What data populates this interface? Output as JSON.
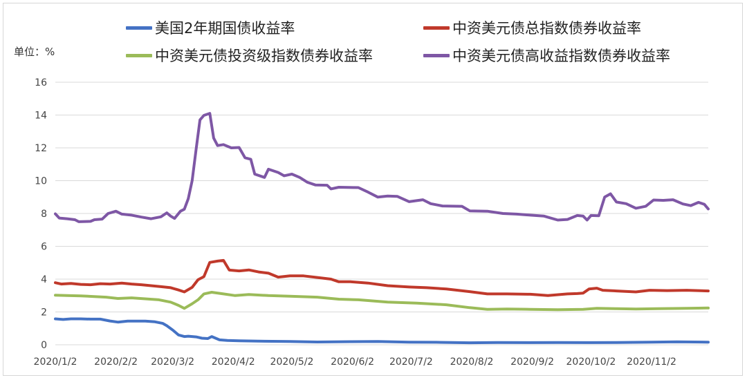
{
  "chart_data": {
    "type": "line",
    "title": "",
    "unit_label": "单位：%",
    "ylim": [
      0,
      16
    ],
    "y_ticks": [
      "0",
      "2",
      "4",
      "6",
      "8",
      "10",
      "12",
      "14",
      "16"
    ],
    "x_ticks": [
      "2020/1/2",
      "2020/2/2",
      "2020/3/2",
      "2020/4/2",
      "2020/5/2",
      "2020/6/2",
      "2020/7/2",
      "2020/8/2",
      "2020/9/2",
      "2020/10/2",
      "2020/11/2"
    ],
    "x_range": [
      "2020/1/2",
      "2020/12/1"
    ],
    "grid": true,
    "legend_position": "top",
    "series": [
      {
        "name": "美国2年期国债收益率",
        "color": "#4472C4",
        "points": [
          [
            "2020/1/2",
            1.58
          ],
          [
            "2020/1/6",
            1.54
          ],
          [
            "2020/1/10",
            1.58
          ],
          [
            "2020/1/15",
            1.58
          ],
          [
            "2020/1/20",
            1.56
          ],
          [
            "2020/1/25",
            1.56
          ],
          [
            "2020/1/30",
            1.45
          ],
          [
            "2020/2/3",
            1.38
          ],
          [
            "2020/2/8",
            1.44
          ],
          [
            "2020/2/12",
            1.44
          ],
          [
            "2020/2/17",
            1.44
          ],
          [
            "2020/2/22",
            1.4
          ],
          [
            "2020/2/26",
            1.3
          ],
          [
            "2020/2/28",
            1.16
          ],
          [
            "2020/3/2",
            0.9
          ],
          [
            "2020/3/5",
            0.6
          ],
          [
            "2020/3/8",
            0.5
          ],
          [
            "2020/3/10",
            0.52
          ],
          [
            "2020/3/14",
            0.48
          ],
          [
            "2020/3/17",
            0.4
          ],
          [
            "2020/3/20",
            0.38
          ],
          [
            "2020/3/22",
            0.5
          ],
          [
            "2020/3/26",
            0.3
          ],
          [
            "2020/3/30",
            0.26
          ],
          [
            "2020/4/5",
            0.24
          ],
          [
            "2020/4/15",
            0.22
          ],
          [
            "2020/5/1",
            0.2
          ],
          [
            "2020/5/15",
            0.17
          ],
          [
            "2020/6/1",
            0.19
          ],
          [
            "2020/6/15",
            0.2
          ],
          [
            "2020/7/1",
            0.16
          ],
          [
            "2020/7/15",
            0.15
          ],
          [
            "2020/8/1",
            0.12
          ],
          [
            "2020/8/15",
            0.14
          ],
          [
            "2020/9/1",
            0.13
          ],
          [
            "2020/9/15",
            0.14
          ],
          [
            "2020/10/1",
            0.13
          ],
          [
            "2020/10/15",
            0.14
          ],
          [
            "2020/11/1",
            0.16
          ],
          [
            "2020/11/15",
            0.18
          ],
          [
            "2020/12/1",
            0.16
          ]
        ]
      },
      {
        "name": "中资美元债总指数债券收益率",
        "color": "#C0392B",
        "points": [
          [
            "2020/1/2",
            3.78
          ],
          [
            "2020/1/5",
            3.7
          ],
          [
            "2020/1/10",
            3.74
          ],
          [
            "2020/1/15",
            3.68
          ],
          [
            "2020/1/20",
            3.66
          ],
          [
            "2020/1/25",
            3.72
          ],
          [
            "2020/1/30",
            3.7
          ],
          [
            "2020/2/5",
            3.76
          ],
          [
            "2020/2/10",
            3.7
          ],
          [
            "2020/2/15",
            3.66
          ],
          [
            "2020/2/20",
            3.6
          ],
          [
            "2020/2/25",
            3.54
          ],
          [
            "2020/3/1",
            3.48
          ],
          [
            "2020/3/5",
            3.34
          ],
          [
            "2020/3/8",
            3.22
          ],
          [
            "2020/3/12",
            3.5
          ],
          [
            "2020/3/15",
            3.96
          ],
          [
            "2020/3/18",
            4.15
          ],
          [
            "2020/3/21",
            5.02
          ],
          [
            "2020/3/25",
            5.1
          ],
          [
            "2020/3/28",
            5.14
          ],
          [
            "2020/3/31",
            4.55
          ],
          [
            "2020/4/5",
            4.5
          ],
          [
            "2020/4/10",
            4.56
          ],
          [
            "2020/4/15",
            4.44
          ],
          [
            "2020/4/20",
            4.36
          ],
          [
            "2020/4/25",
            4.12
          ],
          [
            "2020/5/1",
            4.2
          ],
          [
            "2020/5/8",
            4.2
          ],
          [
            "2020/5/15",
            4.1
          ],
          [
            "2020/5/22",
            4.0
          ],
          [
            "2020/5/26",
            3.84
          ],
          [
            "2020/6/1",
            3.84
          ],
          [
            "2020/6/10",
            3.76
          ],
          [
            "2020/6/20",
            3.6
          ],
          [
            "2020/7/1",
            3.52
          ],
          [
            "2020/7/10",
            3.48
          ],
          [
            "2020/7/20",
            3.4
          ],
          [
            "2020/8/1",
            3.24
          ],
          [
            "2020/8/10",
            3.1
          ],
          [
            "2020/8/20",
            3.1
          ],
          [
            "2020/9/1",
            3.08
          ],
          [
            "2020/9/10",
            3.0
          ],
          [
            "2020/9/20",
            3.1
          ],
          [
            "2020/9/25",
            3.12
          ],
          [
            "2020/9/28",
            3.15
          ],
          [
            "2020/10/1",
            3.4
          ],
          [
            "2020/10/5",
            3.45
          ],
          [
            "2020/10/8",
            3.32
          ],
          [
            "2020/10/15",
            3.28
          ],
          [
            "2020/10/25",
            3.22
          ],
          [
            "2020/11/1",
            3.32
          ],
          [
            "2020/11/10",
            3.3
          ],
          [
            "2020/11/20",
            3.32
          ],
          [
            "2020/12/1",
            3.28
          ]
        ]
      },
      {
        "name": "中资美元债投资级指数债券收益率",
        "color": "#9BBB59",
        "points": [
          [
            "2020/1/2",
            3.02
          ],
          [
            "2020/1/8",
            3.0
          ],
          [
            "2020/1/15",
            2.98
          ],
          [
            "2020/1/22",
            2.94
          ],
          [
            "2020/1/28",
            2.9
          ],
          [
            "2020/2/3",
            2.82
          ],
          [
            "2020/2/10",
            2.86
          ],
          [
            "2020/2/17",
            2.8
          ],
          [
            "2020/2/24",
            2.74
          ],
          [
            "2020/3/1",
            2.6
          ],
          [
            "2020/3/5",
            2.4
          ],
          [
            "2020/3/8",
            2.22
          ],
          [
            "2020/3/12",
            2.5
          ],
          [
            "2020/3/15",
            2.74
          ],
          [
            "2020/3/18",
            3.1
          ],
          [
            "2020/3/22",
            3.2
          ],
          [
            "2020/3/28",
            3.1
          ],
          [
            "2020/4/3",
            3.0
          ],
          [
            "2020/4/10",
            3.06
          ],
          [
            "2020/4/20",
            3.0
          ],
          [
            "2020/5/1",
            2.96
          ],
          [
            "2020/5/15",
            2.9
          ],
          [
            "2020/5/26",
            2.78
          ],
          [
            "2020/6/5",
            2.74
          ],
          [
            "2020/6/20",
            2.6
          ],
          [
            "2020/7/5",
            2.54
          ],
          [
            "2020/7/20",
            2.44
          ],
          [
            "2020/8/1",
            2.26
          ],
          [
            "2020/8/10",
            2.16
          ],
          [
            "2020/8/20",
            2.18
          ],
          [
            "2020/9/1",
            2.16
          ],
          [
            "2020/9/15",
            2.14
          ],
          [
            "2020/9/28",
            2.16
          ],
          [
            "2020/10/5",
            2.22
          ],
          [
            "2020/10/15",
            2.2
          ],
          [
            "2020/10/25",
            2.18
          ],
          [
            "2020/11/5",
            2.2
          ],
          [
            "2020/11/20",
            2.22
          ],
          [
            "2020/12/1",
            2.24
          ]
        ]
      },
      {
        "name": "中资美元债高收益指数债券收益率",
        "color": "#7E57A5",
        "points": [
          [
            "2020/1/2",
            7.98
          ],
          [
            "2020/1/4",
            7.72
          ],
          [
            "2020/1/8",
            7.68
          ],
          [
            "2020/1/12",
            7.62
          ],
          [
            "2020/1/14",
            7.5
          ],
          [
            "2020/1/20",
            7.52
          ],
          [
            "2020/1/22",
            7.62
          ],
          [
            "2020/1/26",
            7.66
          ],
          [
            "2020/1/29",
            8.0
          ],
          [
            "2020/2/2",
            8.14
          ],
          [
            "2020/2/5",
            7.96
          ],
          [
            "2020/2/10",
            7.9
          ],
          [
            "2020/2/15",
            7.78
          ],
          [
            "2020/2/20",
            7.68
          ],
          [
            "2020/2/25",
            7.8
          ],
          [
            "2020/2/28",
            8.04
          ],
          [
            "2020/3/1",
            7.84
          ],
          [
            "2020/3/3",
            7.7
          ],
          [
            "2020/3/6",
            8.14
          ],
          [
            "2020/3/8",
            8.26
          ],
          [
            "2020/3/10",
            8.9
          ],
          [
            "2020/3/12",
            10.0
          ],
          [
            "2020/3/14",
            11.9
          ],
          [
            "2020/3/16",
            13.7
          ],
          [
            "2020/3/18",
            13.98
          ],
          [
            "2020/3/21",
            14.1
          ],
          [
            "2020/3/23",
            12.6
          ],
          [
            "2020/3/25",
            12.14
          ],
          [
            "2020/3/28",
            12.2
          ],
          [
            "2020/4/1",
            12.0
          ],
          [
            "2020/4/5",
            12.02
          ],
          [
            "2020/4/8",
            11.4
          ],
          [
            "2020/4/11",
            11.3
          ],
          [
            "2020/4/13",
            10.4
          ],
          [
            "2020/4/18",
            10.2
          ],
          [
            "2020/4/20",
            10.7
          ],
          [
            "2020/4/25",
            10.5
          ],
          [
            "2020/4/28",
            10.3
          ],
          [
            "2020/5/2",
            10.4
          ],
          [
            "2020/5/6",
            10.2
          ],
          [
            "2020/5/10",
            9.9
          ],
          [
            "2020/5/14",
            9.74
          ],
          [
            "2020/5/20",
            9.72
          ],
          [
            "2020/5/22",
            9.5
          ],
          [
            "2020/5/26",
            9.6
          ],
          [
            "2020/6/5",
            9.58
          ],
          [
            "2020/6/10",
            9.3
          ],
          [
            "2020/6/15",
            9.0
          ],
          [
            "2020/6/20",
            9.06
          ],
          [
            "2020/6/25",
            9.04
          ],
          [
            "2020/7/1",
            8.72
          ],
          [
            "2020/7/8",
            8.84
          ],
          [
            "2020/7/12",
            8.6
          ],
          [
            "2020/7/18",
            8.46
          ],
          [
            "2020/7/28",
            8.44
          ],
          [
            "2020/8/1",
            8.16
          ],
          [
            "2020/8/10",
            8.14
          ],
          [
            "2020/8/18",
            8.0
          ],
          [
            "2020/8/25",
            7.96
          ],
          [
            "2020/9/1",
            7.9
          ],
          [
            "2020/9/8",
            7.84
          ],
          [
            "2020/9/15",
            7.6
          ],
          [
            "2020/9/20",
            7.64
          ],
          [
            "2020/9/25",
            7.88
          ],
          [
            "2020/9/28",
            7.84
          ],
          [
            "2020/9/30",
            7.6
          ],
          [
            "2020/10/2",
            7.88
          ],
          [
            "2020/10/6",
            7.86
          ],
          [
            "2020/10/9",
            9.0
          ],
          [
            "2020/10/12",
            9.2
          ],
          [
            "2020/10/15",
            8.7
          ],
          [
            "2020/10/20",
            8.6
          ],
          [
            "2020/10/25",
            8.32
          ],
          [
            "2020/10/30",
            8.44
          ],
          [
            "2020/11/3",
            8.82
          ],
          [
            "2020/11/8",
            8.8
          ],
          [
            "2020/11/13",
            8.84
          ],
          [
            "2020/11/18",
            8.58
          ],
          [
            "2020/11/22",
            8.48
          ],
          [
            "2020/11/26",
            8.68
          ],
          [
            "2020/11/29",
            8.56
          ],
          [
            "2020/12/1",
            8.28
          ]
        ]
      }
    ]
  }
}
